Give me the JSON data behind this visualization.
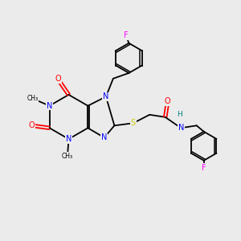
{
  "background_color": "#ebebeb",
  "atom_colors": {
    "N": "#0000ff",
    "O": "#ff0000",
    "S": "#cccc00",
    "F": "#ff00ff",
    "H": "#008080"
  },
  "figsize": [
    3.0,
    3.0
  ],
  "dpi": 100,
  "lw": 1.3
}
